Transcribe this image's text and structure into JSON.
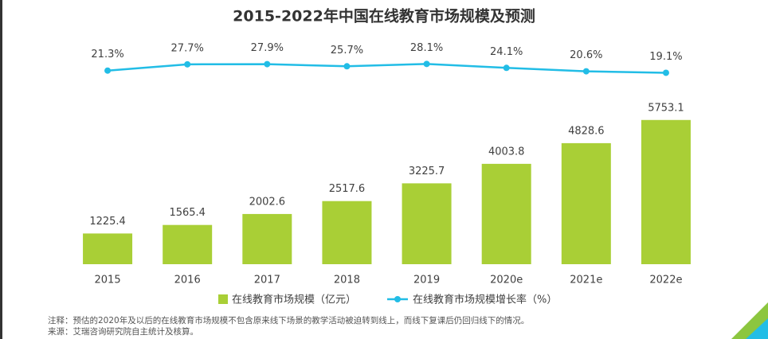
{
  "chart_data": {
    "type": "bar",
    "title": "2015-2022年中国在线教育市场规模及预测",
    "categories": [
      "2015",
      "2016",
      "2017",
      "2018",
      "2019",
      "2020e",
      "2021e",
      "2022e"
    ],
    "series": [
      {
        "name": "在线教育市场规模（亿元）",
        "type": "bar",
        "color": "#a9cf36",
        "axis": "y",
        "values": [
          1225.4,
          1565.4,
          2002.6,
          2517.6,
          3225.7,
          4003.8,
          4828.6,
          5753.1
        ]
      },
      {
        "name": "在线教育市场规模增长率（%）",
        "type": "line",
        "color": "#22bde6",
        "axis": "y2",
        "values": [
          21.3,
          27.7,
          27.9,
          25.7,
          28.1,
          24.1,
          20.6,
          19.1
        ],
        "value_labels": [
          "21.3%",
          "27.7%",
          "27.9%",
          "25.7%",
          "28.1%",
          "24.1%",
          "20.6%",
          "19.1%"
        ]
      }
    ],
    "ylim": [
      0,
      6000
    ],
    "y2lim": [
      0,
      30
    ],
    "notes": [
      "注释：预估的2020年及以后的在线教育市场规模不包含原来线下场景的教学活动被迫转到线上，而线下复课后仍回归线下的情况。",
      "来源：艾瑞咨询研究院自主统计及核算。"
    ]
  }
}
